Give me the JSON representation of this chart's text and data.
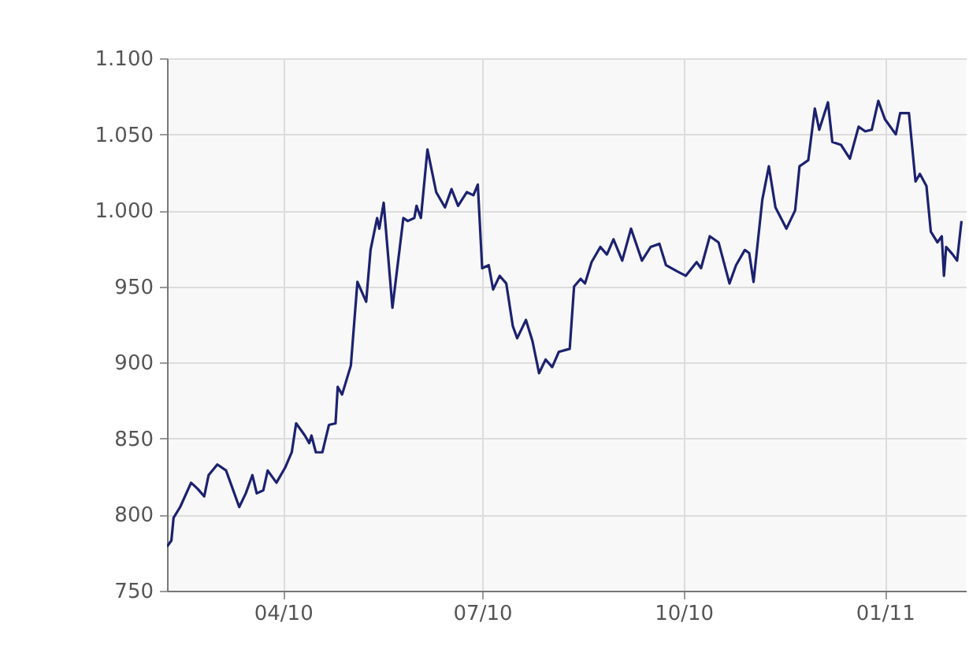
{
  "chart_data": {
    "type": "line",
    "x": [
      "2010-02-07",
      "2010-02-09",
      "2010-02-10",
      "2010-02-13",
      "2010-02-18",
      "2010-02-21",
      "2010-02-24",
      "2010-02-26",
      "2010-03-02",
      "2010-03-06",
      "2010-03-08",
      "2010-03-12",
      "2010-03-15",
      "2010-03-18",
      "2010-03-20",
      "2010-03-23",
      "2010-03-25",
      "2010-03-29",
      "2010-04-02",
      "2010-04-05",
      "2010-04-07",
      "2010-04-11",
      "2010-04-13",
      "2010-04-14",
      "2010-04-16",
      "2010-04-19",
      "2010-04-22",
      "2010-04-25",
      "2010-04-26",
      "2010-04-28",
      "2010-05-02",
      "2010-05-05",
      "2010-05-09",
      "2010-05-11",
      "2010-05-14",
      "2010-05-15",
      "2010-05-17",
      "2010-05-21",
      "2010-05-26",
      "2010-05-28",
      "2010-05-31",
      "2010-06-01",
      "2010-06-03",
      "2010-06-06",
      "2010-06-10",
      "2010-06-14",
      "2010-06-17",
      "2010-06-20",
      "2010-06-24",
      "2010-06-27",
      "2010-06-29",
      "2010-07-01",
      "2010-07-04",
      "2010-07-06",
      "2010-07-09",
      "2010-07-12",
      "2010-07-15",
      "2010-07-17",
      "2010-07-21",
      "2010-07-24",
      "2010-07-27",
      "2010-07-30",
      "2010-08-02",
      "2010-08-05",
      "2010-08-10",
      "2010-08-12",
      "2010-08-15",
      "2010-08-17",
      "2010-08-20",
      "2010-08-24",
      "2010-08-27",
      "2010-08-30",
      "2010-09-03",
      "2010-09-07",
      "2010-09-12",
      "2010-09-16",
      "2010-09-20",
      "2010-09-23",
      "2010-09-28",
      "2010-10-02",
      "2010-10-07",
      "2010-10-09",
      "2010-10-13",
      "2010-10-17",
      "2010-10-22",
      "2010-10-25",
      "2010-10-29",
      "2010-10-31",
      "2010-11-02",
      "2010-11-06",
      "2010-11-09",
      "2010-11-12",
      "2010-11-17",
      "2010-11-21",
      "2010-11-23",
      "2010-11-27",
      "2010-11-30",
      "2010-12-02",
      "2010-12-06",
      "2010-12-08",
      "2010-12-12",
      "2010-12-16",
      "2010-12-20",
      "2010-12-23",
      "2010-12-26",
      "2010-12-29",
      "2011-01-01",
      "2011-01-06",
      "2011-01-08",
      "2011-01-12",
      "2011-01-15",
      "2011-01-17",
      "2011-01-20",
      "2011-01-22",
      "2011-01-25",
      "2011-01-27",
      "2011-01-28",
      "2011-01-29",
      "2011-02-01",
      "2011-02-03",
      "2011-02-05"
    ],
    "series": [
      {
        "color": "#1c2270",
        "values": [
          779,
          783,
          798,
          805,
          821,
          817,
          812,
          826,
          833,
          829,
          821,
          805,
          814,
          826,
          814,
          816,
          829,
          821,
          831,
          841,
          860,
          852,
          847,
          852,
          841,
          841,
          859,
          860,
          884,
          879,
          898,
          953,
          940,
          974,
          995,
          988,
          1005,
          936,
          995,
          993,
          995,
          1003,
          995,
          1040,
          1012,
          1002,
          1014,
          1003,
          1012,
          1010,
          1017,
          962,
          964,
          948,
          957,
          952,
          924,
          916,
          928,
          914,
          893,
          902,
          897,
          907,
          909,
          950,
          955,
          952,
          966,
          976,
          971,
          981,
          967,
          988,
          967,
          976,
          978,
          964,
          960,
          957,
          966,
          962,
          983,
          979,
          952,
          964,
          974,
          972,
          953,
          1007,
          1029,
          1002,
          988,
          1000,
          1029,
          1033,
          1067,
          1053,
          1071,
          1045,
          1043,
          1034,
          1055,
          1052,
          1053,
          1072,
          1060,
          1050,
          1064,
          1064,
          1019,
          1024,
          1016,
          986,
          979,
          983,
          957,
          976,
          971,
          967,
          993
        ]
      }
    ],
    "xlim": [
      "2010-02-07",
      "2011-02-07"
    ],
    "xticks": [
      {
        "value": "2010-04-01",
        "label": "04/10"
      },
      {
        "value": "2010-07-01",
        "label": "07/10"
      },
      {
        "value": "2010-10-01",
        "label": "10/10"
      },
      {
        "value": "2011-01-01",
        "label": "01/11"
      }
    ],
    "ylim": [
      750,
      1100
    ],
    "yticks": [
      750,
      800,
      850,
      900,
      950,
      {
        "value": 1000,
        "label": "1.000"
      },
      {
        "value": 1050,
        "label": "1.050"
      },
      {
        "value": 1100,
        "label": "1.100"
      }
    ],
    "grid": true,
    "line_style": "solid"
  }
}
